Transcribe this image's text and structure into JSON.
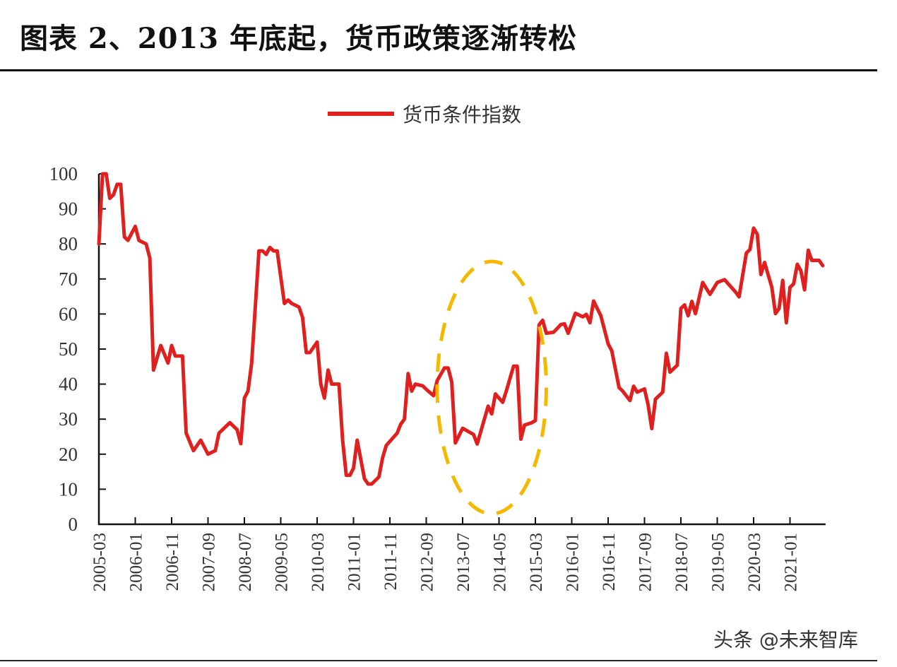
{
  "title": "图表 2、2013 年底起，货币政策逐渐转松",
  "watermark": "头条 @未来智库",
  "colors": {
    "series": "#e0201f",
    "annotation": "#f5b800",
    "axis": "#111111"
  },
  "chart_data": {
    "type": "line",
    "title": "",
    "xlabel": "",
    "ylabel": "",
    "ylim": [
      0,
      100
    ],
    "xlim": [
      "2005-03",
      "2021-10"
    ],
    "grid": false,
    "legend_position": "top-center",
    "yticks": [
      0,
      10,
      20,
      30,
      40,
      50,
      60,
      70,
      80,
      90,
      100
    ],
    "xticks": [
      "2005-03",
      "2006-01",
      "2006-11",
      "2007-09",
      "2008-07",
      "2009-05",
      "2010-03",
      "2011-01",
      "2011-11",
      "2012-09",
      "2013-07",
      "2014-05",
      "2015-03",
      "2016-01",
      "2016-11",
      "2017-09",
      "2018-07",
      "2019-05",
      "2020-03",
      "2021-01"
    ],
    "series": [
      {
        "name": "货币条件指数",
        "points": [
          [
            "2005-03",
            80
          ],
          [
            "2005-04",
            100
          ],
          [
            "2005-05",
            100
          ],
          [
            "2005-06",
            93
          ],
          [
            "2005-07",
            94
          ],
          [
            "2005-08",
            97
          ],
          [
            "2005-09",
            97
          ],
          [
            "2005-10",
            82
          ],
          [
            "2005-11",
            81
          ],
          [
            "2006-01",
            85
          ],
          [
            "2006-02",
            81
          ],
          [
            "2006-04",
            80
          ],
          [
            "2006-05",
            76
          ],
          [
            "2006-06",
            44
          ],
          [
            "2006-08",
            51
          ],
          [
            "2006-10",
            46
          ],
          [
            "2006-11",
            51
          ],
          [
            "2006-12",
            48
          ],
          [
            "2007-02",
            48
          ],
          [
            "2007-03",
            26
          ],
          [
            "2007-05",
            21
          ],
          [
            "2007-07",
            24
          ],
          [
            "2007-09",
            20
          ],
          [
            "2007-11",
            21
          ],
          [
            "2007-12",
            26
          ],
          [
            "2008-03",
            29
          ],
          [
            "2008-05",
            27
          ],
          [
            "2008-06",
            23
          ],
          [
            "2008-07",
            36
          ],
          [
            "2008-08",
            38
          ],
          [
            "2008-09",
            46
          ],
          [
            "2008-11",
            78
          ],
          [
            "2008-12",
            78
          ],
          [
            "2009-01",
            77
          ],
          [
            "2009-02",
            79
          ],
          [
            "2009-03",
            78
          ],
          [
            "2009-04",
            78
          ],
          [
            "2009-06",
            63
          ],
          [
            "2009-07",
            64
          ],
          [
            "2009-08",
            63
          ],
          [
            "2009-10",
            62
          ],
          [
            "2009-11",
            59
          ],
          [
            "2009-12",
            49
          ],
          [
            "2010-01",
            49
          ],
          [
            "2010-03",
            52
          ],
          [
            "2010-04",
            40
          ],
          [
            "2010-05",
            36
          ],
          [
            "2010-06",
            44
          ],
          [
            "2010-07",
            40
          ],
          [
            "2010-08",
            40
          ],
          [
            "2010-09",
            40
          ],
          [
            "2010-10",
            24
          ],
          [
            "2010-11",
            14
          ],
          [
            "2010-12",
            14
          ],
          [
            "2011-01",
            16
          ],
          [
            "2011-02",
            24
          ],
          [
            "2011-04",
            13
          ],
          [
            "2011-05",
            11.5
          ],
          [
            "2011-06",
            11.5
          ],
          [
            "2011-08",
            13.5
          ],
          [
            "2011-09",
            19
          ],
          [
            "2011-10",
            22.5
          ],
          [
            "2012-01",
            26
          ],
          [
            "2012-02",
            28.6
          ],
          [
            "2012-03",
            30
          ],
          [
            "2012-04",
            43
          ],
          [
            "2012-05",
            38
          ],
          [
            "2012-06",
            40
          ],
          [
            "2012-08",
            39.5
          ],
          [
            "2012-09",
            38.5
          ],
          [
            "2012-11",
            36.7
          ],
          [
            "2012-12",
            41
          ],
          [
            "2013-02",
            44.6
          ],
          [
            "2013-03",
            44.6
          ],
          [
            "2013-04",
            40.7
          ],
          [
            "2013-05",
            23.2
          ],
          [
            "2013-07",
            27.4
          ],
          [
            "2013-10",
            25.6
          ],
          [
            "2013-11",
            22.9
          ],
          [
            "2014-02",
            33.7
          ],
          [
            "2014-03",
            31.5
          ],
          [
            "2014-04",
            37.2
          ],
          [
            "2014-06",
            34.8
          ],
          [
            "2014-07",
            38
          ],
          [
            "2014-09",
            45.1
          ],
          [
            "2014-10",
            45.1
          ],
          [
            "2014-11",
            24.3
          ],
          [
            "2014-12",
            28.3
          ],
          [
            "2015-02",
            29
          ],
          [
            "2015-03",
            29.6
          ],
          [
            "2015-04",
            56.9
          ],
          [
            "2015-05",
            58.2
          ],
          [
            "2015-06",
            54.5
          ],
          [
            "2015-08",
            54.8
          ],
          [
            "2015-10",
            57
          ],
          [
            "2015-11",
            57.2
          ],
          [
            "2015-12",
            54.5
          ],
          [
            "2016-02",
            60.2
          ],
          [
            "2016-04",
            59.2
          ],
          [
            "2016-05",
            59.9
          ],
          [
            "2016-06",
            57.5
          ],
          [
            "2016-07",
            63.7
          ],
          [
            "2016-09",
            59.5
          ],
          [
            "2016-11",
            51.5
          ],
          [
            "2016-12",
            49.5
          ],
          [
            "2017-02",
            39
          ],
          [
            "2017-03",
            38
          ],
          [
            "2017-05",
            35.3
          ],
          [
            "2017-06",
            39.4
          ],
          [
            "2017-07",
            37.7
          ],
          [
            "2017-09",
            38.6
          ],
          [
            "2017-10",
            34
          ],
          [
            "2017-11",
            27.3
          ],
          [
            "2017-12",
            35.7
          ],
          [
            "2018-02",
            37.7
          ],
          [
            "2018-03",
            48.8
          ],
          [
            "2018-04",
            43.4
          ],
          [
            "2018-06",
            45.4
          ],
          [
            "2018-07",
            61.6
          ],
          [
            "2018-08",
            62.6
          ],
          [
            "2018-09",
            59.5
          ],
          [
            "2018-10",
            63.6
          ],
          [
            "2018-11",
            60.1
          ],
          [
            "2019-01",
            69
          ],
          [
            "2019-03",
            65.6
          ],
          [
            "2019-05",
            69
          ],
          [
            "2019-07",
            69.8
          ],
          [
            "2019-10",
            66.3
          ],
          [
            "2019-11",
            64.9
          ],
          [
            "2020-01",
            77.4
          ],
          [
            "2020-02",
            78.4
          ],
          [
            "2020-03",
            84.5
          ],
          [
            "2020-04",
            82.7
          ],
          [
            "2020-05",
            71.3
          ],
          [
            "2020-06",
            74.7
          ],
          [
            "2020-08",
            67.6
          ],
          [
            "2020-09",
            60.1
          ],
          [
            "2020-10",
            61.6
          ],
          [
            "2020-11",
            69.6
          ],
          [
            "2020-12",
            57.5
          ],
          [
            "2021-01",
            67.6
          ],
          [
            "2021-02",
            68.6
          ],
          [
            "2021-03",
            74.2
          ],
          [
            "2021-04",
            72.3
          ],
          [
            "2021-05",
            66.9
          ],
          [
            "2021-06",
            78.2
          ],
          [
            "2021-07",
            75.3
          ],
          [
            "2021-09",
            75.3
          ],
          [
            "2021-10",
            73.8
          ]
        ]
      }
    ],
    "annotations": [
      {
        "type": "dashed-ellipse",
        "x_range": [
          "2012-12",
          "2015-06"
        ],
        "y_range": [
          3,
          75
        ]
      }
    ]
  }
}
